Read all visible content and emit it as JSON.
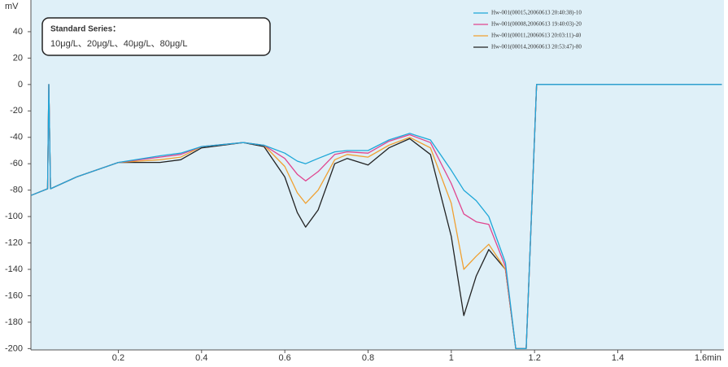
{
  "chart_data": {
    "type": "line",
    "y_label": "mV",
    "annotation": {
      "title": "Standard Series：",
      "text": "10μg/L、20μg/L、40μg/L、80μg/L"
    },
    "x": [
      -0.01,
      0.03,
      0.033,
      0.037,
      0.1,
      0.2,
      0.3,
      0.35,
      0.4,
      0.5,
      0.55,
      0.6,
      0.63,
      0.65,
      0.68,
      0.72,
      0.75,
      0.8,
      0.85,
      0.9,
      0.95,
      1.0,
      1.03,
      1.06,
      1.09,
      1.13,
      1.155,
      1.18,
      1.195,
      1.205,
      1.65
    ],
    "series": [
      {
        "name": "Hw-001(00015,20060613 20:40:38)-10",
        "color": "#1ea7d8",
        "values": [
          -84,
          -79,
          0,
          -79,
          -70,
          -59,
          -54,
          -52,
          -47,
          -44,
          -46,
          -52,
          -58,
          -60,
          -56,
          -51,
          -50,
          -50,
          -42,
          -37,
          -42,
          -65,
          -80,
          -88,
          -100,
          -135,
          -200,
          -200,
          -80,
          0,
          0
        ]
      },
      {
        "name": "Hw-001(00008,20060613 19:40:03)-20",
        "color": "#e0458f",
        "values": [
          -84,
          -79,
          0,
          -79,
          -70,
          -59,
          -55,
          -53,
          -47,
          -44,
          -46,
          -56,
          -68,
          -73,
          -66,
          -53,
          -51,
          -52,
          -43,
          -38,
          -44,
          -75,
          -98,
          -104,
          -106,
          -138,
          -200,
          -200,
          -80,
          0,
          0
        ]
      },
      {
        "name": "Hw-001(00011,20060613 20:03:11)-40",
        "color": "#f0a030",
        "values": [
          -84,
          -79,
          0,
          -79,
          -70,
          -59,
          -57,
          -55,
          -47,
          -44,
          -46,
          -62,
          -82,
          -90,
          -80,
          -57,
          -53,
          -55,
          -46,
          -40,
          -48,
          -90,
          -140,
          -130,
          -121,
          -140,
          -200,
          -200,
          -80,
          0,
          0
        ]
      },
      {
        "name": "Hw-001(00014,20060613 20:53:47)-80",
        "color": "#222222",
        "values": [
          -84,
          -79,
          0,
          -79,
          -70,
          -59,
          -59,
          -57,
          -48,
          -44,
          -47,
          -70,
          -97,
          -108,
          -95,
          -60,
          -56,
          -61,
          -48,
          -41,
          -53,
          -115,
          -175,
          -145,
          -125,
          -140,
          -200,
          -200,
          -80,
          0,
          0
        ]
      }
    ],
    "xlim": [
      -0.01,
      1.655
    ],
    "ylim": [
      -201,
      64
    ],
    "xticks": [
      0.2,
      0.4,
      0.6,
      0.8,
      1,
      1.2,
      1.4,
      {
        "value": 1.6,
        "label": "1.6min"
      }
    ],
    "yticks": [
      40,
      20,
      0,
      -20,
      -40,
      -60,
      -80,
      -100,
      -120,
      -140,
      -160,
      -180,
      -200
    ],
    "grid": false
  }
}
